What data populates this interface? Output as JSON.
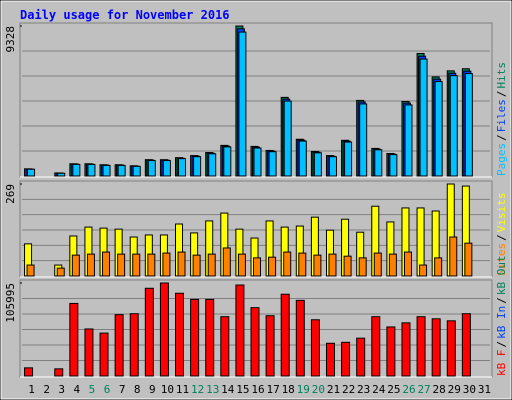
{
  "chart_data": [
    {
      "type": "bar",
      "title": "Daily usage for November 2016",
      "ylim": [
        0,
        9328
      ],
      "yticks": [
        9328
      ],
      "legend_separator": "/",
      "series": [
        {
          "name": "Hits",
          "color": "#00805c",
          "values": [
            445,
            0,
            190,
            760,
            760,
            700,
            700,
            635,
            1015,
            1015,
            1140,
            1270,
            1460,
            1905,
            9328,
            1840,
            1590,
            4890,
            2285,
            1525,
            1270,
            2220,
            4700,
            1715,
            1400,
            4635,
            7620,
            6160,
            6540,
            6670,
            0
          ]
        },
        {
          "name": "Files",
          "color": "#0040ff",
          "values": [
            430,
            0,
            180,
            740,
            740,
            680,
            680,
            615,
            990,
            990,
            1110,
            1240,
            1420,
            1860,
            9150,
            1790,
            1550,
            4780,
            2230,
            1480,
            1230,
            2170,
            4600,
            1670,
            1360,
            4530,
            7450,
            6020,
            6390,
            6520,
            0
          ]
        },
        {
          "name": "Pages",
          "color": "#00c0ff",
          "values": [
            420,
            0,
            170,
            720,
            720,
            660,
            660,
            600,
            960,
            960,
            1080,
            1200,
            1380,
            1810,
            8950,
            1740,
            1510,
            4660,
            2170,
            1440,
            1200,
            2110,
            4480,
            1630,
            1330,
            4420,
            7270,
            5870,
            6240,
            6370,
            0
          ]
        }
      ]
    },
    {
      "type": "bar",
      "ylim": [
        0,
        269
      ],
      "yticks": [
        269
      ],
      "legend_separator": "/",
      "series": [
        {
          "name": "Visits",
          "color": "#ffff00",
          "values": [
            94,
            0,
            32,
            117,
            143,
            140,
            137,
            114,
            120,
            120,
            152,
            126,
            161,
            184,
            137,
            111,
            161,
            143,
            146,
            172,
            134,
            166,
            128,
            204,
            158,
            199,
            199,
            190,
            269,
            263,
            0
          ]
        },
        {
          "name": "Sites",
          "color": "#ff8000",
          "values": [
            32,
            0,
            23,
            61,
            64,
            70,
            64,
            64,
            64,
            67,
            70,
            61,
            64,
            82,
            64,
            53,
            55,
            70,
            67,
            61,
            64,
            58,
            53,
            67,
            64,
            70,
            32,
            53,
            114,
            96,
            0
          ]
        }
      ]
    },
    {
      "type": "bar",
      "ylim": [
        0,
        105995
      ],
      "yticks": [
        105995
      ],
      "legend_separator": "/",
      "categories": [
        "1",
        "2",
        "3",
        "4",
        "5",
        "6",
        "7",
        "8",
        "9",
        "10",
        "11",
        "12",
        "13",
        "14",
        "15",
        "16",
        "17",
        "18",
        "19",
        "20",
        "21",
        "22",
        "23",
        "24",
        "25",
        "26",
        "27",
        "28",
        "29",
        "30",
        "31"
      ],
      "category_colors": [
        "#000000",
        "#000000",
        "#000000",
        "#000000",
        "#00805c",
        "#00805c",
        "#000000",
        "#000000",
        "#000000",
        "#000000",
        "#000000",
        "#00805c",
        "#00805c",
        "#000000",
        "#000000",
        "#000000",
        "#000000",
        "#000000",
        "#00805c",
        "#00805c",
        "#000000",
        "#000000",
        "#000000",
        "#000000",
        "#000000",
        "#00805c",
        "#00805c",
        "#000000",
        "#000000",
        "#000000",
        "#000000"
      ],
      "legend_only": [
        {
          "name": "kB In",
          "color": "#0040ff"
        },
        {
          "name": "kB Out",
          "color": "#00805c"
        }
      ],
      "series": [
        {
          "name": "kB F",
          "color": "#ff0000",
          "values": [
            9300,
            0,
            8150,
            82700,
            53600,
            48900,
            69900,
            71000,
            100000,
            105995,
            94300,
            87300,
            87300,
            67600,
            103700,
            77900,
            68700,
            93200,
            86200,
            64100,
            37300,
            38400,
            43100,
            67600,
            55900,
            60600,
            67600,
            65200,
            62900,
            71000,
            0
          ]
        }
      ]
    }
  ]
}
